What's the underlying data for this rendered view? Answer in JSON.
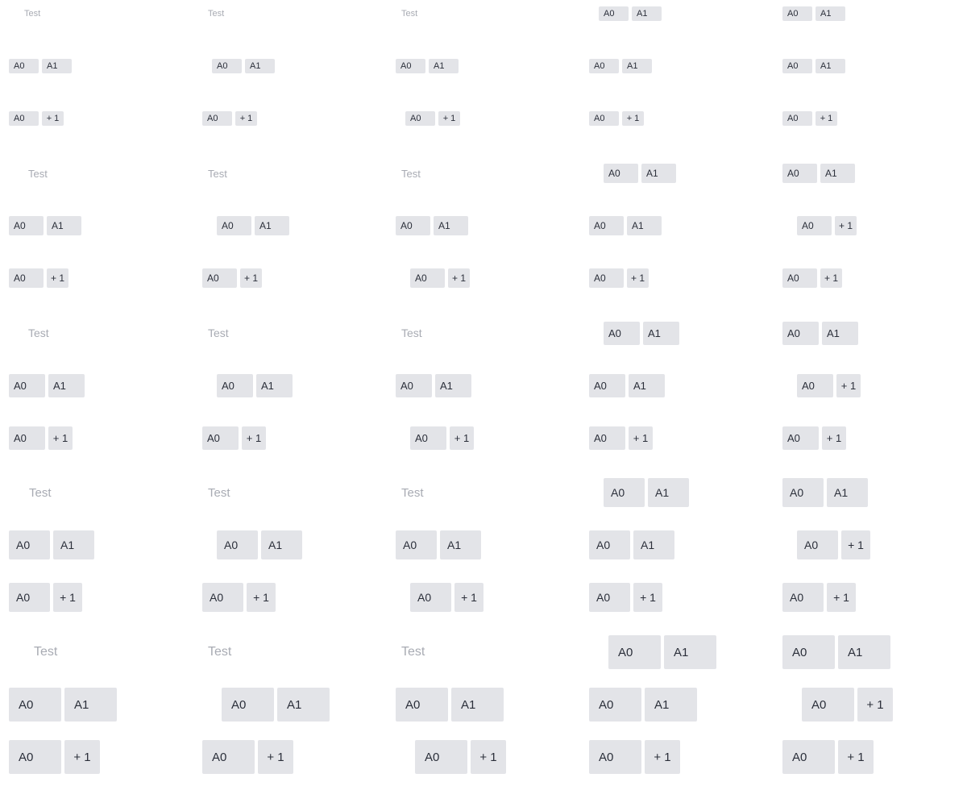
{
  "placeholder": "Test",
  "tag_first": "A0",
  "tag_second": "A1",
  "overflow_label": "+ 1",
  "colors": {
    "tag_background": "#e3e4e8",
    "placeholder_text": "#a8abb3",
    "tag_text": "#2b2f3a"
  },
  "sizes": [
    "xsmall",
    "small",
    "medium",
    "large",
    "xlarge"
  ],
  "variants": [
    "placeholder",
    "two-tags",
    "tag-with-overflow-count"
  ]
}
